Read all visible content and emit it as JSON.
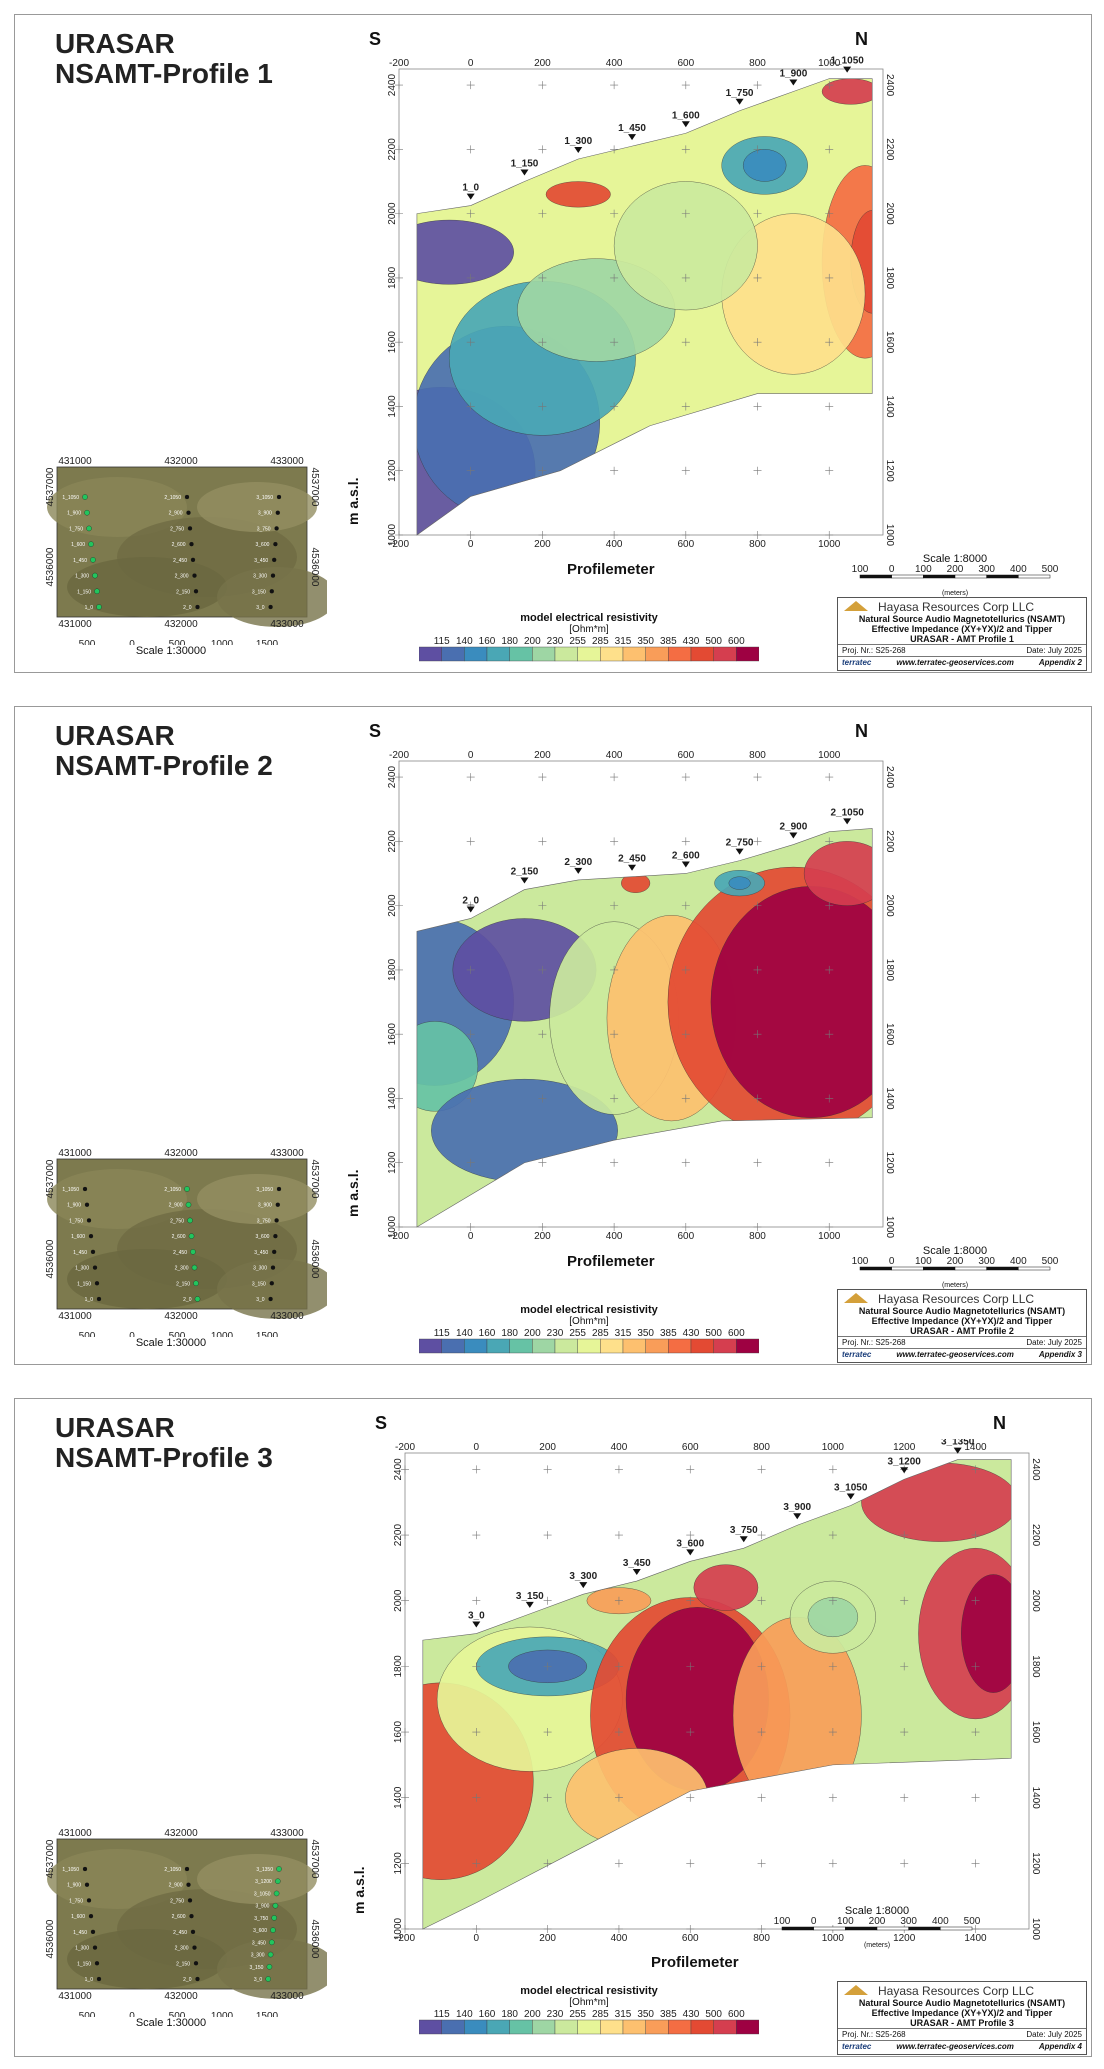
{
  "palette": [
    "#5e4fa2",
    "#4a6fb0",
    "#3a8cbe",
    "#4aa7b5",
    "#66c2a5",
    "#9ed6a4",
    "#cbe99d",
    "#e6f598",
    "#fee08b",
    "#fdc06f",
    "#f99d59",
    "#f46d43",
    "#e34a33",
    "#d53e4f",
    "#9e0142"
  ],
  "legend": {
    "title": "model electrical resistivity",
    "unit": "[Ohm*m]",
    "values": [
      "115",
      "140",
      "160",
      "180",
      "200",
      "230",
      "255",
      "285",
      "315",
      "350",
      "385",
      "430",
      "500",
      "600"
    ]
  },
  "common": {
    "direction_left": "S",
    "direction_right": "N",
    "xlabel": "Profilemeter",
    "ylabel": "m a.s.l.",
    "section_scale": "Scale 1:8000",
    "section_scale_ticks": [
      "100",
      "0",
      "100",
      "200",
      "300",
      "400",
      "500"
    ],
    "section_scale_unit": "(meters)",
    "map_scale": "Scale 1:30000",
    "map_scale_ticks": [
      "500",
      "0",
      "500",
      "1000",
      "1500"
    ],
    "map_scale_unit": "(meters)",
    "map_crs": "WGS 84 / UTM zone 38N",
    "map_x_labels": [
      "431000",
      "432000",
      "433000"
    ],
    "map_y_labels": [
      "4537000",
      "4536000"
    ],
    "company": "Hayasa Resources Corp LLC",
    "method_line1": "Natural Source Audio Magnetotellurics (NSAMT)",
    "method_line2": "Effective Impedance (XY+YX)/2 and Tipper",
    "proj": "Proj. Nr.: S25-268",
    "date": "Date: July 2025",
    "brand": "terratec",
    "brand_sub": "Geophysical Services",
    "website": "www.terratec-geoservices.com"
  },
  "profiles": [
    {
      "title1": "URASAR",
      "title2": "NSAMT-Profile 1",
      "sheet": "URASAR - AMT Profile 1",
      "appendix": "Appendix 2",
      "x_ticks": [
        "-200",
        "0",
        "200",
        "400",
        "600",
        "800",
        "1000"
      ],
      "y_ticks": [
        "2400",
        "2200",
        "2000",
        "1800",
        "1600",
        "1400",
        "1200",
        "1000"
      ],
      "stations": [
        "1_0",
        "1_150",
        "1_300",
        "1_450",
        "1_600",
        "1_750",
        "1_900",
        "1_1050"
      ],
      "map_labels_left": [
        "1_1050",
        "1_900",
        "1_750",
        "1_600",
        "1_450",
        "1_300",
        "1_150",
        "1_0"
      ],
      "map_labels_mid": [
        "2_1050",
        "2_900",
        "2_750",
        "2_600",
        "2_450",
        "2_300",
        "2_150",
        "2_0"
      ],
      "map_labels_right": [
        "3_1050",
        "3_900",
        "3_750",
        "3_600",
        "3_450",
        "3_300",
        "3_150",
        "3_0"
      ],
      "highlight": "left"
    },
    {
      "title1": "URASAR",
      "title2": "NSAMT-Profile 2",
      "sheet": "URASAR - AMT Profile 2",
      "appendix": "Appendix 3",
      "x_ticks": [
        "-200",
        "0",
        "200",
        "400",
        "600",
        "800",
        "1000"
      ],
      "y_ticks": [
        "2400",
        "2200",
        "2000",
        "1800",
        "1600",
        "1400",
        "1200",
        "1000"
      ],
      "stations": [
        "2_0",
        "2_150",
        "2_300",
        "2_450",
        "2_600",
        "2_750",
        "2_900",
        "2_1050"
      ],
      "map_labels_left": [
        "1_1050",
        "1_900",
        "1_750",
        "1_600",
        "1_450",
        "1_300",
        "1_150",
        "1_0"
      ],
      "map_labels_mid": [
        "2_1050",
        "2_900",
        "2_750",
        "2_600",
        "2_450",
        "2_300",
        "2_150",
        "2_0"
      ],
      "map_labels_right": [
        "3_1050",
        "3_900",
        "3_750",
        "3_600",
        "3_450",
        "3_300",
        "3_150",
        "3_0"
      ],
      "highlight": "mid"
    },
    {
      "title1": "URASAR",
      "title2": "NSAMT-Profile 3",
      "sheet": "URASAR - AMT Profile 3",
      "appendix": "Appendix 4",
      "x_ticks": [
        "-200",
        "0",
        "200",
        "400",
        "600",
        "800",
        "1000",
        "1200",
        "1400"
      ],
      "y_ticks": [
        "2400",
        "2200",
        "2000",
        "1800",
        "1600",
        "1400",
        "1200",
        "1000"
      ],
      "stations": [
        "3_0",
        "3_150",
        "3_300",
        "3_450",
        "3_600",
        "3_750",
        "3_900",
        "3_1050",
        "3_1200",
        "3_1350"
      ],
      "map_labels_left": [
        "1_1050",
        "1_900",
        "1_750",
        "1_600",
        "1_450",
        "1_300",
        "1_150",
        "1_0"
      ],
      "map_labels_mid": [
        "2_1050",
        "2_900",
        "2_750",
        "2_600",
        "2_450",
        "2_300",
        "2_150",
        "2_0"
      ],
      "map_labels_right": [
        "3_1350",
        "3_1200",
        "3_1050",
        "3_900",
        "3_750",
        "3_600",
        "3_450",
        "3_300",
        "3_150",
        "3_0"
      ],
      "highlight": "right"
    }
  ]
}
